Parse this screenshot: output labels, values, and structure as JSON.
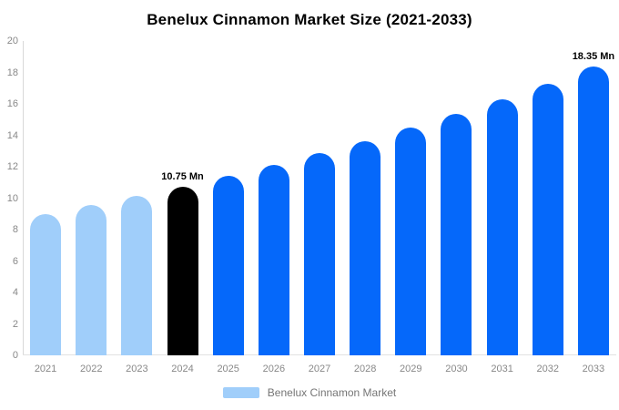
{
  "title": "Benelux Cinnamon Market Size (2021-2033)",
  "legend": {
    "label": "Benelux Cinnamon Market",
    "swatch_color": "#a0cefa"
  },
  "palette": {
    "historical": "#a0cefa",
    "current": "#000000",
    "forecast": "#0568fa",
    "axis_text": "#888888",
    "axis_line": "#d8d8d8",
    "annotation_text": "#000000"
  },
  "chart_data": {
    "type": "bar",
    "title": "Benelux Cinnamon Market Size (2021-2033)",
    "xlabel": "",
    "ylabel": "",
    "unit": "Mn",
    "categories": [
      "2021",
      "2022",
      "2023",
      "2024",
      "2025",
      "2026",
      "2027",
      "2028",
      "2029",
      "2030",
      "2031",
      "2032",
      "2033"
    ],
    "values": [
      9.0,
      9.55,
      10.13,
      10.75,
      11.41,
      12.11,
      12.85,
      13.63,
      14.47,
      15.35,
      16.29,
      17.29,
      18.35
    ],
    "segments": [
      "historical",
      "historical",
      "historical",
      "current",
      "forecast",
      "forecast",
      "forecast",
      "forecast",
      "forecast",
      "forecast",
      "forecast",
      "forecast",
      "forecast"
    ],
    "annotations": [
      {
        "category": "2024",
        "text": "10.75 Mn"
      },
      {
        "category": "2033",
        "text": "18.35 Mn"
      }
    ],
    "ylim": [
      0,
      20
    ],
    "yticks": [
      0,
      2,
      4,
      6,
      8,
      10,
      12,
      14,
      16,
      18,
      20
    ],
    "grid": false,
    "legend_position": "bottom",
    "legend_entries": [
      "Benelux Cinnamon Market"
    ]
  }
}
